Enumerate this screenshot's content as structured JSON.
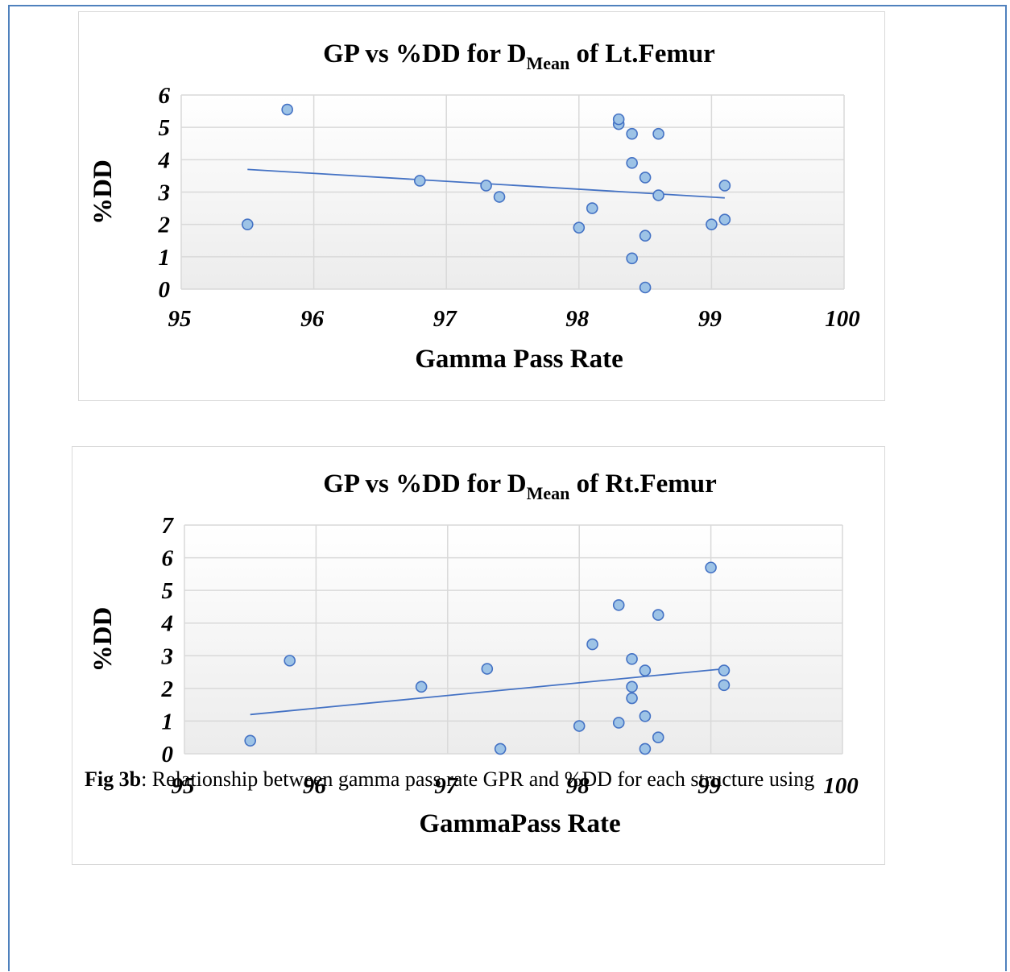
{
  "chart_data": [
    {
      "type": "scatter",
      "title": "GP vs %DD for D",
      "title_sub": "Mean",
      "title_tail": " of Lt.Femur",
      "xlabel": "Gamma Pass Rate",
      "ylabel": "%DD",
      "xlim": [
        95,
        100
      ],
      "ylim": [
        0,
        6
      ],
      "xticks": [
        "95",
        "96",
        "97",
        "98",
        "99",
        "100"
      ],
      "yticks": [
        "0",
        "1",
        "2",
        "3",
        "4",
        "5",
        "6"
      ],
      "grid": true,
      "points": [
        {
          "x": 95.5,
          "y": 2.0
        },
        {
          "x": 95.8,
          "y": 5.55
        },
        {
          "x": 96.8,
          "y": 3.35
        },
        {
          "x": 97.3,
          "y": 3.2
        },
        {
          "x": 97.4,
          "y": 2.85
        },
        {
          "x": 98.0,
          "y": 1.9
        },
        {
          "x": 98.1,
          "y": 2.5
        },
        {
          "x": 98.3,
          "y": 5.1
        },
        {
          "x": 98.3,
          "y": 5.25
        },
        {
          "x": 98.4,
          "y": 4.8
        },
        {
          "x": 98.4,
          "y": 3.9
        },
        {
          "x": 98.4,
          "y": 0.95
        },
        {
          "x": 98.5,
          "y": 3.45
        },
        {
          "x": 98.5,
          "y": 1.65
        },
        {
          "x": 98.5,
          "y": 0.05
        },
        {
          "x": 98.6,
          "y": 4.8
        },
        {
          "x": 98.6,
          "y": 2.9
        },
        {
          "x": 99.0,
          "y": 2.0
        },
        {
          "x": 99.1,
          "y": 3.2
        },
        {
          "x": 99.1,
          "y": 2.15
        }
      ],
      "trendline": {
        "x": [
          95.5,
          99.1
        ],
        "y": [
          3.7,
          2.82
        ]
      },
      "colors": {
        "point_fill": "#9dc3e6",
        "point_stroke": "#4472c4",
        "trend": "#4472c4",
        "grid": "#d9d9d9"
      }
    },
    {
      "type": "scatter",
      "title": "GP vs %DD for D",
      "title_sub": "Mean",
      "title_tail": " of Rt.Femur",
      "xlabel": "GammaPass Rate",
      "ylabel": "%DD",
      "xlim": [
        95,
        100
      ],
      "ylim": [
        0,
        7
      ],
      "xticks": [
        "95",
        "96",
        "97",
        "98",
        "99",
        "100"
      ],
      "yticks": [
        "0",
        "1",
        "2",
        "3",
        "4",
        "5",
        "6",
        "7"
      ],
      "grid": true,
      "points": [
        {
          "x": 95.5,
          "y": 0.4
        },
        {
          "x": 95.8,
          "y": 2.85
        },
        {
          "x": 96.8,
          "y": 2.05
        },
        {
          "x": 97.3,
          "y": 2.6
        },
        {
          "x": 97.4,
          "y": 0.15
        },
        {
          "x": 98.0,
          "y": 0.85
        },
        {
          "x": 98.1,
          "y": 3.35
        },
        {
          "x": 98.3,
          "y": 4.55
        },
        {
          "x": 98.3,
          "y": 0.95
        },
        {
          "x": 98.4,
          "y": 2.9
        },
        {
          "x": 98.4,
          "y": 2.05
        },
        {
          "x": 98.4,
          "y": 1.7
        },
        {
          "x": 98.5,
          "y": 2.55
        },
        {
          "x": 98.5,
          "y": 1.15
        },
        {
          "x": 98.5,
          "y": 0.15
        },
        {
          "x": 98.6,
          "y": 4.25
        },
        {
          "x": 98.6,
          "y": 0.5
        },
        {
          "x": 99.0,
          "y": 5.7
        },
        {
          "x": 99.1,
          "y": 2.55
        },
        {
          "x": 99.1,
          "y": 2.1
        }
      ],
      "trendline": {
        "x": [
          95.5,
          99.1
        ],
        "y": [
          1.2,
          2.6
        ]
      },
      "colors": {
        "point_fill": "#9dc3e6",
        "point_stroke": "#4472c4",
        "trend": "#4472c4",
        "grid": "#d9d9d9"
      }
    }
  ],
  "caption": {
    "label": "Fig 3b",
    "text": ": Relationship between gamma pass rate GPR and %DD for each structure using"
  }
}
